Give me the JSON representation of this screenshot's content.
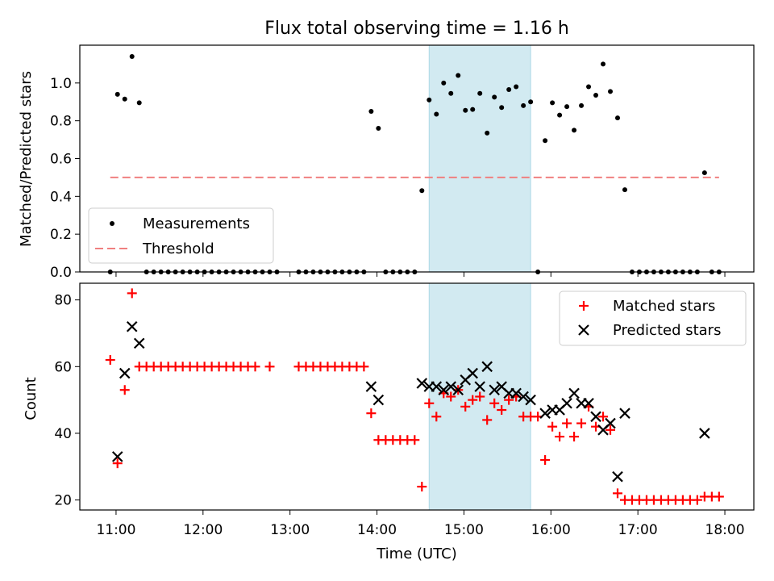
{
  "chart_data": [
    {
      "type": "scatter",
      "title": "Flux total observing time = 1.16 h",
      "ylabel": "Matched/Predicted stars",
      "xlabel": "",
      "ylim": [
        0,
        1.2
      ],
      "yticks": [
        "0.0",
        "0.2",
        "0.4",
        "0.6",
        "0.8",
        "1.0"
      ],
      "ytick_values": [
        0,
        0.2,
        0.4,
        0.6,
        0.8,
        1.0
      ],
      "xlim": [
        "10:35",
        "18:20"
      ],
      "grid": false,
      "legend": "lower-left",
      "highlight_span": {
        "x": [
          "14:36",
          "15:46"
        ],
        "color": "#add8e6"
      },
      "series": [
        {
          "name": "Measurements",
          "marker": "dot",
          "color": "#000000",
          "x": [
            "10:56",
            "11:01",
            "11:06",
            "11:11",
            "11:16",
            "11:21",
            "11:26",
            "11:31",
            "11:36",
            "11:41",
            "11:46",
            "11:51",
            "11:56",
            "12:01",
            "12:06",
            "12:11",
            "12:16",
            "12:21",
            "12:26",
            "12:31",
            "12:36",
            "12:41",
            "12:46",
            "12:51",
            "13:06",
            "13:11",
            "13:16",
            "13:21",
            "13:26",
            "13:31",
            "13:36",
            "13:41",
            "13:46",
            "13:51",
            "13:56",
            "14:01",
            "14:06",
            "14:11",
            "14:16",
            "14:21",
            "14:26",
            "14:31",
            "14:36",
            "14:41",
            "14:46",
            "14:51",
            "14:56",
            "15:01",
            "15:06",
            "15:11",
            "15:16",
            "15:21",
            "15:26",
            "15:31",
            "15:36",
            "15:41",
            "15:46",
            "15:51",
            "15:56",
            "16:01",
            "16:06",
            "16:11",
            "16:16",
            "16:21",
            "16:26",
            "16:31",
            "16:36",
            "16:41",
            "16:46",
            "16:51",
            "16:56",
            "17:01",
            "17:06",
            "17:11",
            "17:16",
            "17:21",
            "17:26",
            "17:31",
            "17:36",
            "17:41",
            "17:46",
            "17:51",
            "17:56"
          ],
          "y": [
            0,
            0.94,
            0.915,
            1.14,
            0.895,
            0,
            0,
            0,
            0,
            0,
            0,
            0,
            0,
            0,
            0,
            0,
            0,
            0,
            0,
            0,
            0,
            0,
            0,
            0,
            0,
            0,
            0,
            0,
            0,
            0,
            0,
            0,
            0,
            0,
            0.85,
            0.76,
            0,
            0,
            0,
            0,
            0,
            0.43,
            0.91,
            0.835,
            1.0,
            0.945,
            1.04,
            0.855,
            0.86,
            0.945,
            0.735,
            0.925,
            0.87,
            0.965,
            0.98,
            0.88,
            0.9,
            0,
            0.695,
            0.895,
            0.83,
            0.875,
            0.75,
            0.88,
            0.98,
            0.935,
            1.1,
            0.955,
            0.815,
            0.435,
            0,
            0,
            0,
            0,
            0,
            0,
            0,
            0,
            0,
            0,
            0.525,
            0,
            0
          ]
        },
        {
          "name": "Threshold",
          "marker": "dashed-line",
          "color": "#f08080",
          "x": [
            "10:56",
            "17:56"
          ],
          "y": [
            0.5,
            0.5
          ]
        }
      ]
    },
    {
      "type": "scatter",
      "title": "",
      "xlabel": "Time (UTC)",
      "ylabel": "Count",
      "ylim": [
        17,
        85
      ],
      "yticks": [
        "20",
        "40",
        "60",
        "80"
      ],
      "ytick_values": [
        20,
        40,
        60,
        80
      ],
      "xlim": [
        "10:35",
        "18:20"
      ],
      "xticks": [
        "11:00",
        "12:00",
        "13:00",
        "14:00",
        "15:00",
        "16:00",
        "17:00",
        "18:00"
      ],
      "grid": false,
      "legend": "upper-right",
      "highlight_span": {
        "x": [
          "14:36",
          "15:46"
        ],
        "color": "#add8e6"
      },
      "series": [
        {
          "name": "Matched stars",
          "marker": "plus",
          "color": "#ff0000",
          "x": [
            "10:56",
            "11:01",
            "11:06",
            "11:11",
            "11:16",
            "11:21",
            "11:26",
            "11:31",
            "11:36",
            "11:41",
            "11:46",
            "11:51",
            "11:56",
            "12:01",
            "12:06",
            "12:11",
            "12:16",
            "12:21",
            "12:26",
            "12:31",
            "12:36",
            "12:46",
            "13:06",
            "13:11",
            "13:16",
            "13:21",
            "13:26",
            "13:31",
            "13:36",
            "13:41",
            "13:46",
            "13:51",
            "13:56",
            "14:01",
            "14:06",
            "14:11",
            "14:16",
            "14:21",
            "14:26",
            "14:31",
            "14:36",
            "14:41",
            "14:46",
            "14:51",
            "14:56",
            "15:01",
            "15:06",
            "15:11",
            "15:16",
            "15:21",
            "15:26",
            "15:31",
            "15:36",
            "15:41",
            "15:46",
            "15:51",
            "15:56",
            "16:01",
            "16:06",
            "16:11",
            "16:16",
            "16:21",
            "16:26",
            "16:31",
            "16:36",
            "16:41",
            "16:46",
            "16:51",
            "16:56",
            "17:01",
            "17:06",
            "17:11",
            "17:16",
            "17:21",
            "17:26",
            "17:31",
            "17:36",
            "17:41",
            "17:46",
            "17:51",
            "17:56"
          ],
          "y": [
            62,
            31,
            53,
            82,
            60,
            60,
            60,
            60,
            60,
            60,
            60,
            60,
            60,
            60,
            60,
            60,
            60,
            60,
            60,
            60,
            60,
            60,
            60,
            60,
            60,
            60,
            60,
            60,
            60,
            60,
            60,
            60,
            46,
            38,
            38,
            38,
            38,
            38,
            38,
            24,
            49,
            45,
            52,
            51,
            53,
            48,
            50,
            51,
            44,
            49,
            47,
            50,
            51,
            45,
            45,
            45,
            32,
            42,
            39,
            43,
            39,
            43,
            48,
            42,
            45,
            41,
            22,
            20,
            20,
            20,
            20,
            20,
            20,
            20,
            20,
            20,
            20,
            20,
            21,
            21,
            21
          ]
        },
        {
          "name": "Predicted stars",
          "marker": "x",
          "color": "#000000",
          "x": [
            "11:01",
            "11:06",
            "11:11",
            "11:16",
            "13:56",
            "14:01",
            "14:31",
            "14:36",
            "14:41",
            "14:46",
            "14:51",
            "14:56",
            "15:01",
            "15:06",
            "15:11",
            "15:16",
            "15:21",
            "15:26",
            "15:31",
            "15:36",
            "15:41",
            "15:46",
            "15:56",
            "16:01",
            "16:06",
            "16:11",
            "16:16",
            "16:21",
            "16:26",
            "16:31",
            "16:36",
            "16:41",
            "16:46",
            "16:51",
            "17:46"
          ],
          "y": [
            33,
            58,
            72,
            67,
            54,
            50,
            55,
            54,
            54,
            53,
            54,
            53,
            56,
            58,
            54,
            60,
            53,
            54,
            52,
            52,
            51,
            50,
            46,
            47,
            47,
            49,
            52,
            49,
            49,
            45,
            41,
            43,
            27,
            46,
            40
          ]
        }
      ]
    }
  ]
}
